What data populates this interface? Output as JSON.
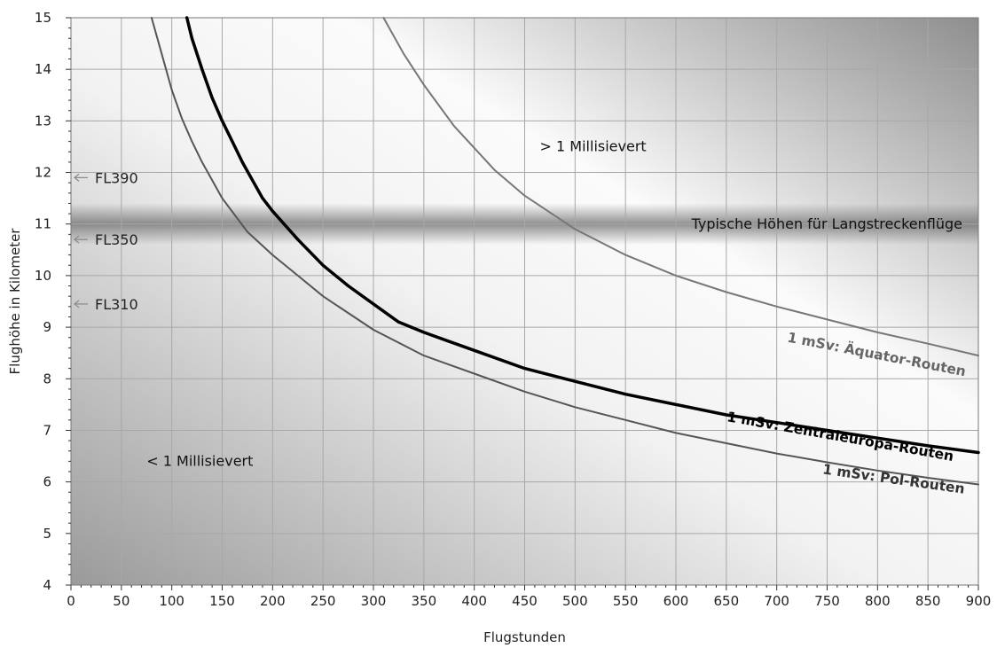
{
  "chart_data": {
    "type": "line",
    "title": "",
    "xlabel": "Flugstunden",
    "ylabel": "Flughöhe in Kilometer",
    "xlim": [
      0,
      900
    ],
    "ylim": [
      4,
      15
    ],
    "xticks": [
      "0",
      "50",
      "100",
      "150",
      "200",
      "250",
      "300",
      "350",
      "400",
      "450",
      "500",
      "550",
      "600",
      "650",
      "700",
      "750",
      "800",
      "850",
      "900"
    ],
    "yticks": [
      "4",
      "5",
      "6",
      "7",
      "8",
      "9",
      "10",
      "11",
      "12",
      "13",
      "14",
      "15"
    ],
    "grid": true,
    "band": {
      "label": "Typische Höhen für Langstreckenflüge",
      "y_from": 10.6,
      "y_to": 11.4
    },
    "flight_levels": [
      {
        "label": "FL390",
        "y": 11.9
      },
      {
        "label": "FL350",
        "y": 10.7
      },
      {
        "label": "FL310",
        "y": 9.45
      }
    ],
    "region_labels": [
      {
        "text": "> 1 Millisievert",
        "x": 465,
        "y": 12.5
      },
      {
        "text": "< 1 Millisievert",
        "x": 75,
        "y": 6.4
      }
    ],
    "series": [
      {
        "name": "1 mSv: Äquator-Routen",
        "color": "#777777",
        "x": [
          310,
          330,
          350,
          380,
          420,
          450,
          500,
          550,
          600,
          650,
          700,
          750,
          800,
          850,
          900
        ],
        "y": [
          15,
          14.3,
          13.7,
          12.9,
          12.05,
          11.55,
          10.9,
          10.4,
          10.0,
          9.68,
          9.4,
          9.15,
          8.9,
          8.68,
          8.45
        ]
      },
      {
        "name": "1 mSv: Zentraleuropa-Routen",
        "color": "#000000",
        "x": [
          115,
          120,
          130,
          140,
          150,
          160,
          170,
          180,
          190,
          200,
          225,
          250,
          275,
          300,
          325,
          350,
          400,
          450,
          500,
          550,
          600,
          650,
          700,
          750,
          800,
          850,
          900
        ],
        "y": [
          15,
          14.6,
          14.0,
          13.45,
          13.0,
          12.6,
          12.2,
          11.85,
          11.5,
          11.25,
          10.7,
          10.2,
          9.8,
          9.45,
          9.1,
          8.9,
          8.55,
          8.2,
          7.95,
          7.7,
          7.5,
          7.3,
          7.15,
          7.0,
          6.85,
          6.7,
          6.57
        ]
      },
      {
        "name": "1 mSv: Pol-Routen",
        "color": "#555555",
        "x": [
          80,
          90,
          100,
          110,
          120,
          130,
          150,
          175,
          200,
          225,
          250,
          300,
          350,
          400,
          450,
          500,
          550,
          600,
          650,
          700,
          750,
          800,
          850,
          900
        ],
        "y": [
          15,
          14.3,
          13.6,
          13.05,
          12.6,
          12.2,
          11.5,
          10.85,
          10.4,
          10.0,
          9.6,
          8.95,
          8.45,
          8.1,
          7.75,
          7.45,
          7.2,
          6.95,
          6.75,
          6.55,
          6.38,
          6.22,
          6.08,
          5.95
        ]
      }
    ],
    "series_label_positions": [
      {
        "x": 710,
        "y": 8.72,
        "angle": 11,
        "color": "#666666"
      },
      {
        "x": 650,
        "y": 7.18,
        "angle": 10,
        "color": "#000000"
      },
      {
        "x": 745,
        "y": 6.16,
        "angle": 8,
        "color": "#333333"
      }
    ]
  }
}
